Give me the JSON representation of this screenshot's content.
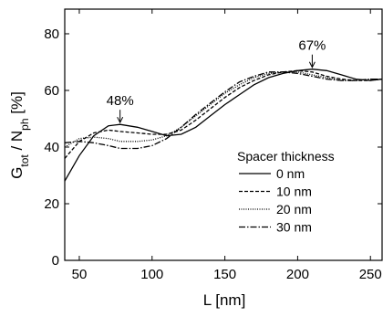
{
  "chart_data": {
    "type": "line",
    "x_label": "L [nm]",
    "y_label": [
      "G",
      "tot",
      " / N",
      "ph",
      " [%]"
    ],
    "x": [
      40,
      50,
      60,
      70,
      78,
      90,
      100,
      110,
      120,
      130,
      140,
      150,
      160,
      170,
      180,
      190,
      200,
      210,
      220,
      230,
      240,
      250,
      258
    ],
    "series": [
      {
        "name": "0 nm",
        "color": "#000000",
        "dash": "none",
        "values": [
          28,
          37,
          44,
          47.5,
          48,
          47,
          45.5,
          44,
          44.5,
          47,
          51,
          55,
          58.5,
          62,
          64.5,
          66,
          67,
          67.5,
          67,
          65.5,
          64,
          63.5,
          64
        ]
      },
      {
        "name": "10 nm",
        "color": "#000000",
        "dash": "4,2",
        "values": [
          36,
          42,
          45,
          46,
          45.5,
          45,
          44.5,
          44.5,
          46,
          49.5,
          53.5,
          57.5,
          61,
          63.5,
          65.5,
          66.5,
          67,
          66.5,
          65,
          64,
          63.5,
          63.5,
          64
        ]
      },
      {
        "name": "20 nm",
        "color": "#000000",
        "dash": "1,1.5",
        "values": [
          40,
          43,
          43.5,
          43,
          42,
          42,
          42.5,
          44,
          47,
          51,
          55,
          59,
          62,
          64.5,
          66,
          66.5,
          66.5,
          65.5,
          64.5,
          63.5,
          63.5,
          64,
          64
        ]
      },
      {
        "name": "30 nm",
        "color": "#000000",
        "dash": "7,2,1.5,2",
        "values": [
          41.5,
          42,
          41.5,
          40.5,
          39.5,
          39.5,
          40.5,
          43,
          47,
          51.5,
          55.5,
          59.5,
          63,
          65,
          66.5,
          66.5,
          66,
          65,
          64,
          63.5,
          63.5,
          64,
          64
        ]
      }
    ],
    "legend_title": "Spacer thickness",
    "legend_position": "lower right",
    "annotations": [
      {
        "text": "48%",
        "x": 78,
        "y": 48
      },
      {
        "text": "67%",
        "x": 210,
        "y": 67.5
      }
    ],
    "xlim": [
      40,
      258
    ],
    "xticks": [
      50,
      100,
      150,
      200,
      250
    ],
    "ylim": [
      0,
      88.7
    ],
    "yticks": [
      0,
      20,
      40,
      60,
      80
    ],
    "grid": false
  }
}
